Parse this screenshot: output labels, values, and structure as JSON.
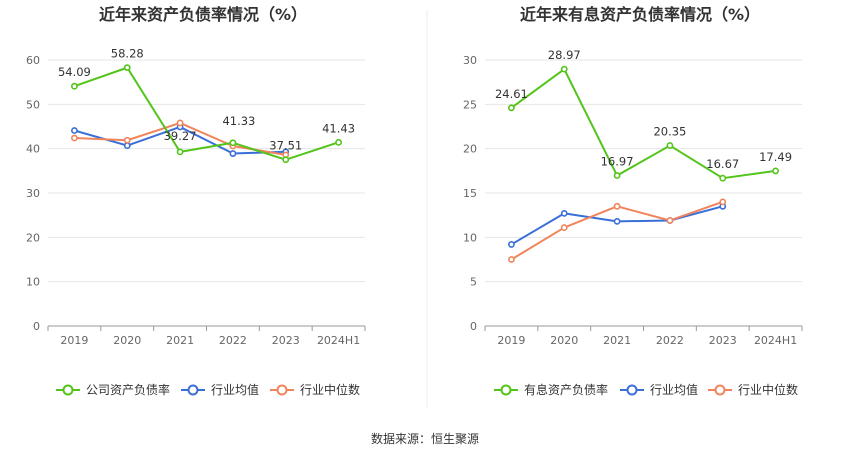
{
  "source_text": "数据来源：恒生聚源",
  "chart_data": [
    {
      "type": "line",
      "title": "近年来资产负债率情况（%）",
      "categories": [
        "2019",
        "2020",
        "2021",
        "2022",
        "2023",
        "2024H1"
      ],
      "ylim": [
        0,
        60
      ],
      "yticks": [
        0,
        10,
        20,
        30,
        40,
        50,
        60
      ],
      "grid": true,
      "legend_position": "bottom",
      "series": [
        {
          "name": "公司资产负债率",
          "color": "#52c41a",
          "values": [
            54.09,
            58.28,
            39.27,
            41.33,
            37.51,
            41.43
          ],
          "labels": [
            "54.09",
            "58.28",
            "39.27",
            "41.33",
            "37.51",
            "41.43"
          ]
        },
        {
          "name": "行业均值",
          "color": "#3a6fd8",
          "values": [
            44.1,
            40.7,
            44.9,
            38.9,
            39.3,
            null
          ]
        },
        {
          "name": "行业中位数",
          "color": "#f0845c",
          "values": [
            42.4,
            41.9,
            45.8,
            40.6,
            38.6,
            null
          ]
        }
      ]
    },
    {
      "type": "line",
      "title": "近年来有息资产负债率情况（%）",
      "categories": [
        "2019",
        "2020",
        "2021",
        "2022",
        "2023",
        "2024H1"
      ],
      "ylim": [
        0,
        30
      ],
      "yticks": [
        0,
        5,
        10,
        15,
        20,
        25,
        30
      ],
      "grid": true,
      "legend_position": "bottom",
      "series": [
        {
          "name": "有息资产负债率",
          "color": "#52c41a",
          "values": [
            24.61,
            28.97,
            16.97,
            20.35,
            16.67,
            17.49
          ],
          "labels": [
            "24.61",
            "28.97",
            "16.97",
            "20.35",
            "16.67",
            "17.49"
          ]
        },
        {
          "name": "行业均值",
          "color": "#3a6fd8",
          "values": [
            9.2,
            12.7,
            11.8,
            11.9,
            13.5,
            null
          ]
        },
        {
          "name": "行业中位数",
          "color": "#f0845c",
          "values": [
            7.5,
            11.1,
            13.5,
            11.9,
            14.0,
            null
          ]
        }
      ]
    }
  ]
}
